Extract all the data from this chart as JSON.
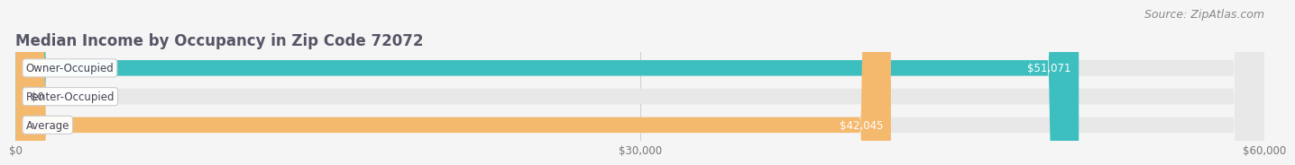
{
  "title": "Median Income by Occupancy in Zip Code 72072",
  "source": "Source: ZipAtlas.com",
  "categories": [
    "Owner-Occupied",
    "Renter-Occupied",
    "Average"
  ],
  "values": [
    51071,
    0,
    42045
  ],
  "bar_colors": [
    "#3dbfbf",
    "#c8a8d8",
    "#f5b96e"
  ],
  "bar_bg_color": "#e8e8e8",
  "label_texts": [
    "$51,071",
    "$0",
    "$42,045"
  ],
  "xlabel_ticks": [
    0,
    30000,
    60000
  ],
  "xlabel_labels": [
    "$0",
    "$30,000",
    "$60,000"
  ],
  "xlim": [
    0,
    60000
  ],
  "title_color": "#555566",
  "title_fontsize": 12,
  "source_fontsize": 9,
  "source_color": "#888888",
  "bar_height": 0.55,
  "background_color": "#f5f5f5"
}
